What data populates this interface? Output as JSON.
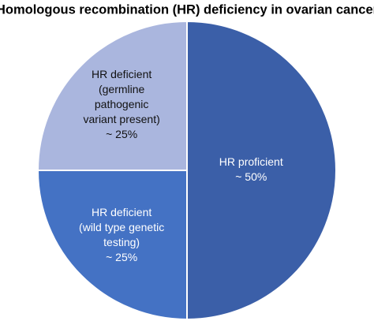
{
  "chart_data": {
    "type": "pie",
    "title": "Homologous recombination (HR) deficiency in ovarian cancer",
    "categories": [
      [
        "HR proficient"
      ],
      [
        "HR deficient",
        "(wild type genetic",
        "testing)"
      ],
      [
        "HR deficient",
        "(germline",
        "pathogenic",
        "variant present)"
      ]
    ],
    "values": [
      50,
      25,
      25
    ],
    "value_labels": [
      "~ 50%",
      "~ 25%",
      "~ 25%"
    ],
    "colors": [
      "#3b5fa8",
      "#4472c4",
      "#aab6de"
    ]
  }
}
